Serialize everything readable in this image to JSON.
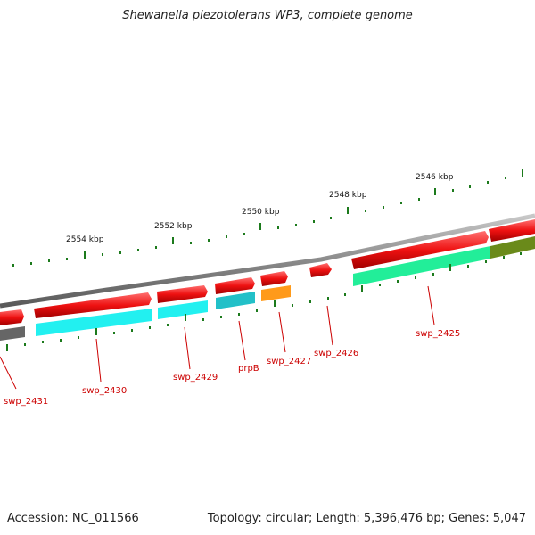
{
  "title": "Shewanella piezotolerans WP3, complete genome",
  "footer": {
    "accession": "Accession: NC_011566",
    "topology": "Topology: circular; Length: 5,396,476 bp; Genes: 5,047"
  },
  "colors": {
    "backbone": "#8a8a8a",
    "forward_gene": "#ee1111",
    "tick": "#1c7a1c",
    "label": "#cc0000",
    "cyan": "#22f0f0",
    "teal": "#22c0c8",
    "orange": "#ff9a1a",
    "springgreen": "#22ee99",
    "olive": "#6a8a1a",
    "gray": "#666666"
  },
  "scale_labels": [
    "2554 kbp",
    "2552 kbp",
    "2550 kbp",
    "2548 kbp",
    "2546 kbp"
  ],
  "gene_labels": [
    "swp_2431",
    "swp_2430",
    "swp_2429",
    "prpB",
    "swp_2427",
    "swp_2426",
    "swp_2425"
  ]
}
